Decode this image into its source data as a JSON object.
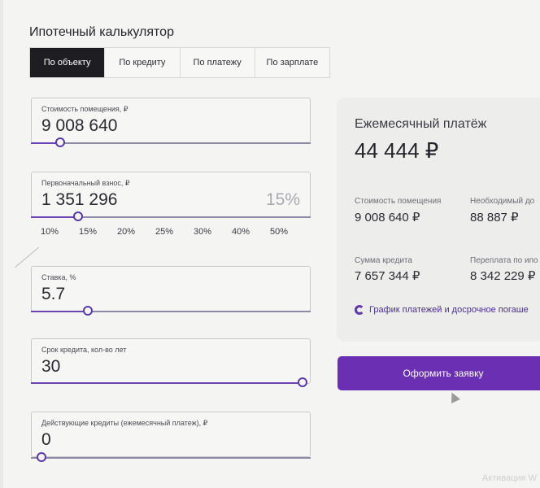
{
  "title": "Ипотечный калькулятор",
  "tabs": [
    {
      "label": "По объекту",
      "active": true
    },
    {
      "label": "По кредиту"
    },
    {
      "label": "По платежу"
    },
    {
      "label": "По зарплате"
    }
  ],
  "fields": {
    "price": {
      "label": "Стоимость помещения, ₽",
      "value": "9 008 640"
    },
    "down": {
      "label": "Первоначальный взнос, ₽",
      "value": "1 351 296",
      "percent": "15%"
    },
    "rate": {
      "label": "Ставка, %",
      "value": "5.7"
    },
    "term": {
      "label": "Срок кредита, кол-во лет",
      "value": "30"
    },
    "credits": {
      "label": "Действующие кредиты (ежемесячный платеж), ₽",
      "value": "0"
    }
  },
  "percent_chips": [
    "10%",
    "15%",
    "20%",
    "25%",
    "30%",
    "40%",
    "50%"
  ],
  "summary": {
    "heading": "Ежемесячный платёж",
    "payment": "44 444 ₽",
    "price_label": "Стоимость помещения",
    "price_value": "9 008 640 ₽",
    "income_label": "Необходимый до",
    "income_value": "88 887 ₽",
    "loan_label": "Сумма кредита",
    "loan_value": "7 657 344 ₽",
    "overpay_label": "Переплата по ипо",
    "overpay_value": "8 342 229 ₽",
    "schedule_link": "График платежей и досрочное погаше"
  },
  "cta_label": "Оформить заявку",
  "watermark": "Активация W",
  "colors": {
    "accent": "#6a2fb2",
    "active_tab": "#1d1d22"
  }
}
